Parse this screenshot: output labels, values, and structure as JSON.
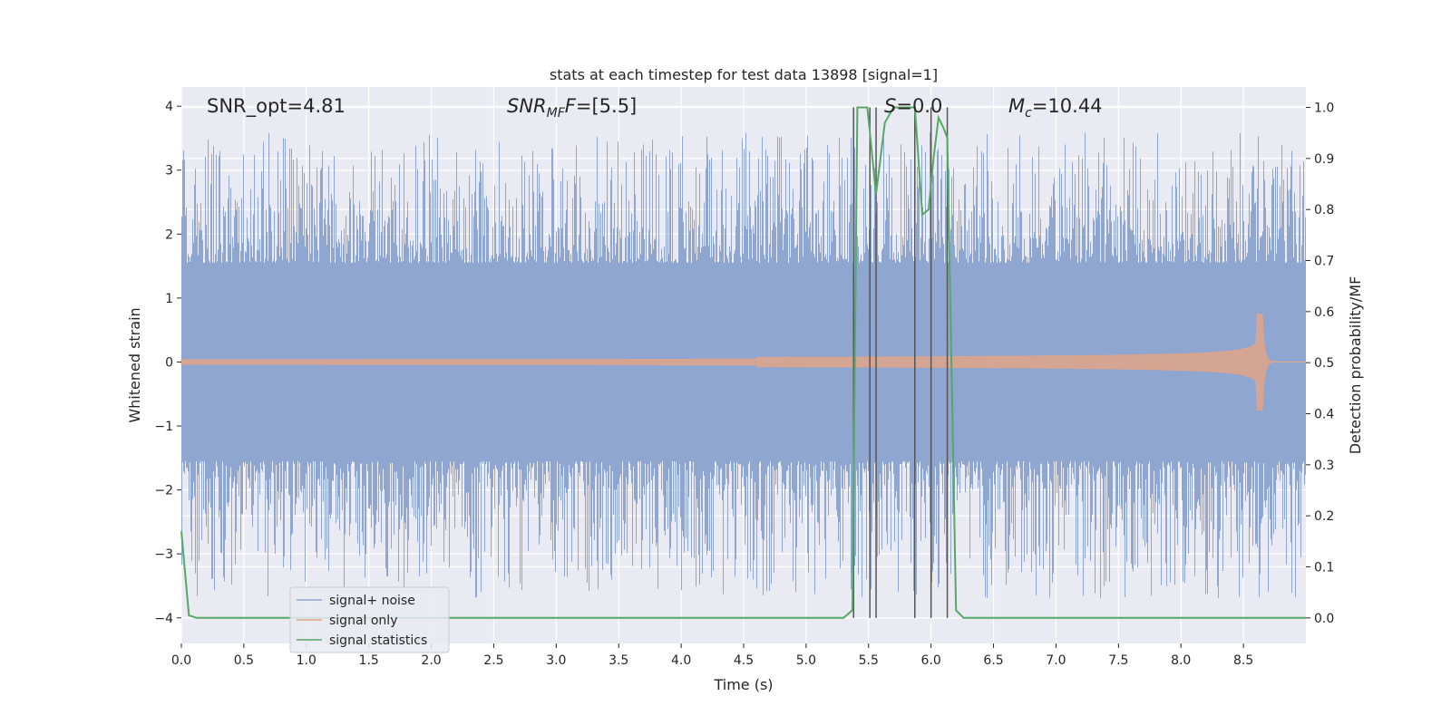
{
  "chart_data": {
    "type": "line",
    "title": "stats at each timestep for test data 13898 [signal=1]",
    "xlabel": "Time (s)",
    "ylabel": "Whitened strain",
    "ylabel_right": "Detection probability/MF",
    "xlim": [
      0.0,
      9.0
    ],
    "ylim": [
      -4.4,
      4.3
    ],
    "ylim_right": [
      -0.05,
      1.04
    ],
    "x_ticks": [
      "0.0",
      "0.5",
      "1.0",
      "1.5",
      "2.0",
      "2.5",
      "3.0",
      "3.5",
      "4.0",
      "4.5",
      "5.0",
      "5.5",
      "6.0",
      "6.5",
      "7.0",
      "7.5",
      "8.0",
      "8.5"
    ],
    "x_tick_values": [
      0.0,
      0.5,
      1.0,
      1.5,
      2.0,
      2.5,
      3.0,
      3.5,
      4.0,
      4.5,
      5.0,
      5.5,
      6.0,
      6.5,
      7.0,
      7.5,
      8.0,
      8.5
    ],
    "y_ticks": [
      "4",
      "3",
      "2",
      "1",
      "0",
      "−1",
      "−2",
      "−3",
      "−4"
    ],
    "y_tick_values": [
      4,
      3,
      2,
      1,
      0,
      -1,
      -2,
      -3,
      -4
    ],
    "y_ticks_right": [
      "1.0",
      "0.9",
      "0.8",
      "0.7",
      "0.6",
      "0.5",
      "0.4",
      "0.3",
      "0.2",
      "0.1",
      "0.0"
    ],
    "y_tick_values_right": [
      1.0,
      0.9,
      0.8,
      0.7,
      0.6,
      0.5,
      0.4,
      0.3,
      0.2,
      0.1,
      0.0
    ],
    "grid": true,
    "legend_position": "lower-left",
    "annotations": {
      "snr_opt": "SNR_opt=4.81",
      "snr_mf_main": "SNR",
      "snr_mf_sub": "MF",
      "snr_mf_value": "=[5.5]",
      "s_main": "S",
      "s_value": "=0.0",
      "mc_main": "M",
      "mc_sub": "c",
      "mc_value": "=10.44"
    },
    "series": [
      {
        "name": "signal+ noise",
        "color": "#8fa6d0",
        "axis": "left",
        "description_kind": "noise",
        "band_inner": [
          -1.55,
          1.55
        ],
        "spike_range": [
          -3.7,
          3.6
        ]
      },
      {
        "name": "signal only",
        "color": "#e0a488",
        "axis": "left",
        "description_kind": "chirp",
        "merger_time": 8.65,
        "peak_amplitude": 0.75
      },
      {
        "name": "signal statistics",
        "color": "#55a868",
        "axis": "right",
        "x": [
          0.0,
          0.06,
          0.12,
          0.2,
          5.3,
          5.37,
          5.41,
          5.44,
          5.49,
          5.56,
          5.63,
          5.7,
          5.8,
          5.87,
          5.93,
          5.98,
          6.02,
          6.06,
          6.1,
          6.13,
          6.2,
          6.26,
          6.35,
          9.0
        ],
        "values": [
          0.17,
          0.005,
          0.0,
          0.0,
          0.0,
          0.015,
          1.0,
          1.0,
          1.0,
          0.83,
          0.97,
          1.0,
          1.0,
          1.0,
          0.79,
          0.8,
          0.9,
          0.98,
          0.96,
          0.94,
          0.015,
          0.0,
          0.0,
          0.0
        ]
      }
    ],
    "vertical_markers": {
      "color": "#555555",
      "x": [
        5.38,
        5.51,
        5.56,
        5.87,
        6.0,
        6.13
      ],
      "ymin_right": 0.0,
      "ymax_right": 1.0
    }
  }
}
